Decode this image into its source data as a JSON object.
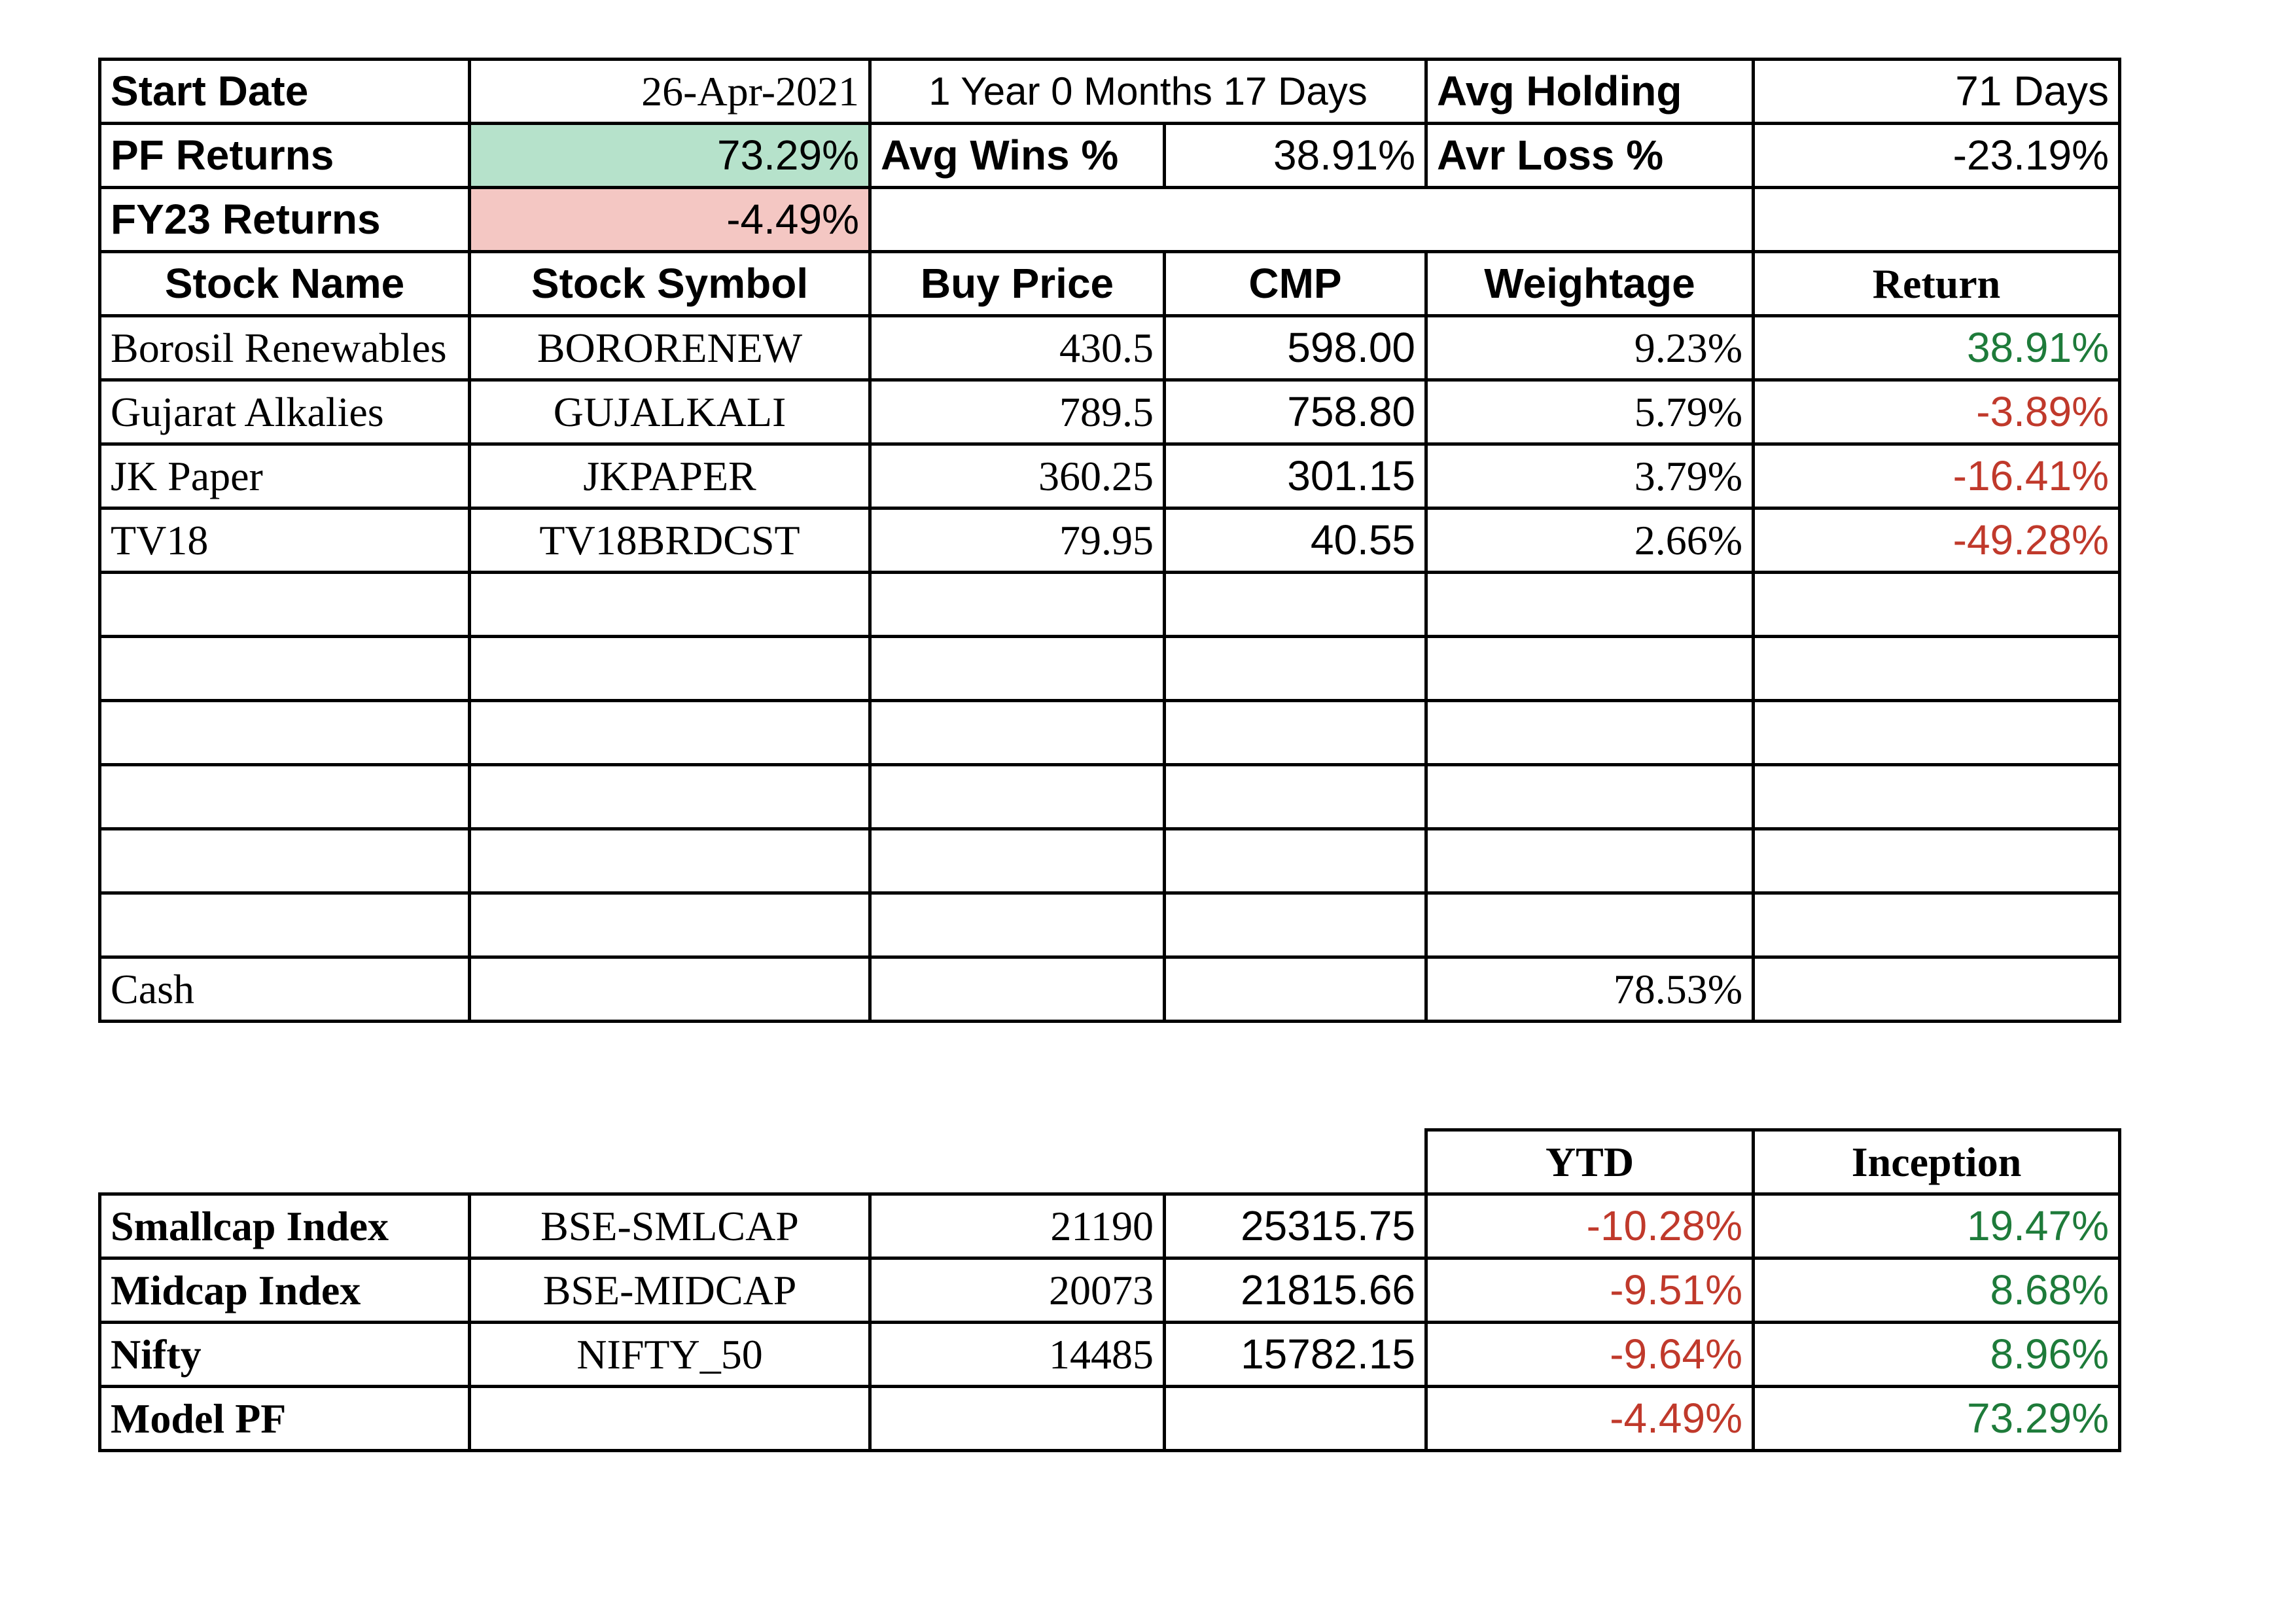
{
  "summary": {
    "start_date_label": "Start Date",
    "start_date": "26-Apr-2021",
    "duration": "1 Year 0 Months 17 Days",
    "avg_holding_label": "Avg Holding",
    "avg_holding": "71 Days",
    "pf_returns_label": "PF Returns",
    "pf_returns": "73.29%",
    "avg_wins_label": "Avg Wins %",
    "avg_wins": "38.91%",
    "avg_loss_label": "Avr Loss %",
    "avg_loss": "-23.19%",
    "fy23_label": "FY23 Returns",
    "fy23_returns": "-4.49%"
  },
  "holdings": {
    "headers": [
      "Stock Name",
      "Stock Symbol",
      "Buy Price",
      "CMP",
      "Weightage",
      "Return"
    ],
    "rows": [
      {
        "name": "Borosil Renewables",
        "symbol": "BORORENEW",
        "buy": "430.5",
        "cmp": "598.00",
        "weight": "9.23%",
        "ret": "38.91%"
      },
      {
        "name": "Gujarat Alkalies",
        "symbol": "GUJALKALI",
        "buy": "789.5",
        "cmp": "758.80",
        "weight": "5.79%",
        "ret": "-3.89%"
      },
      {
        "name": "JK Paper",
        "symbol": "JKPAPER",
        "buy": "360.25",
        "cmp": "301.15",
        "weight": "3.79%",
        "ret": "-16.41%"
      },
      {
        "name": "TV18",
        "symbol": "TV18BRDCST",
        "buy": "79.95",
        "cmp": "40.55",
        "weight": "2.66%",
        "ret": "-49.28%"
      }
    ],
    "cash_label": "Cash",
    "cash_weight": "78.53%"
  },
  "indices": {
    "headers": [
      "YTD",
      "Inception"
    ],
    "rows": [
      {
        "name": "Smallcap Index",
        "symbol": "BSE-SMLCAP",
        "base": "21190",
        "current": "25315.75",
        "ytd": "-10.28%",
        "inception": "19.47%"
      },
      {
        "name": "Midcap Index",
        "symbol": "BSE-MIDCAP",
        "base": "20073",
        "current": "21815.66",
        "ytd": "-9.51%",
        "inception": "8.68%"
      },
      {
        "name": "Nifty",
        "symbol": "NIFTY_50",
        "base": "14485",
        "current": "15782.15",
        "ytd": "-9.64%",
        "inception": "8.96%"
      },
      {
        "name": "Model PF",
        "symbol": "",
        "base": "",
        "current": "",
        "ytd": "-4.49%",
        "inception": "73.29%"
      }
    ]
  },
  "colors": {
    "positive": "#1e7b3a",
    "negative": "#c0392b",
    "highlight_green": "#b6e2cb",
    "highlight_red": "#f4c7c3"
  }
}
